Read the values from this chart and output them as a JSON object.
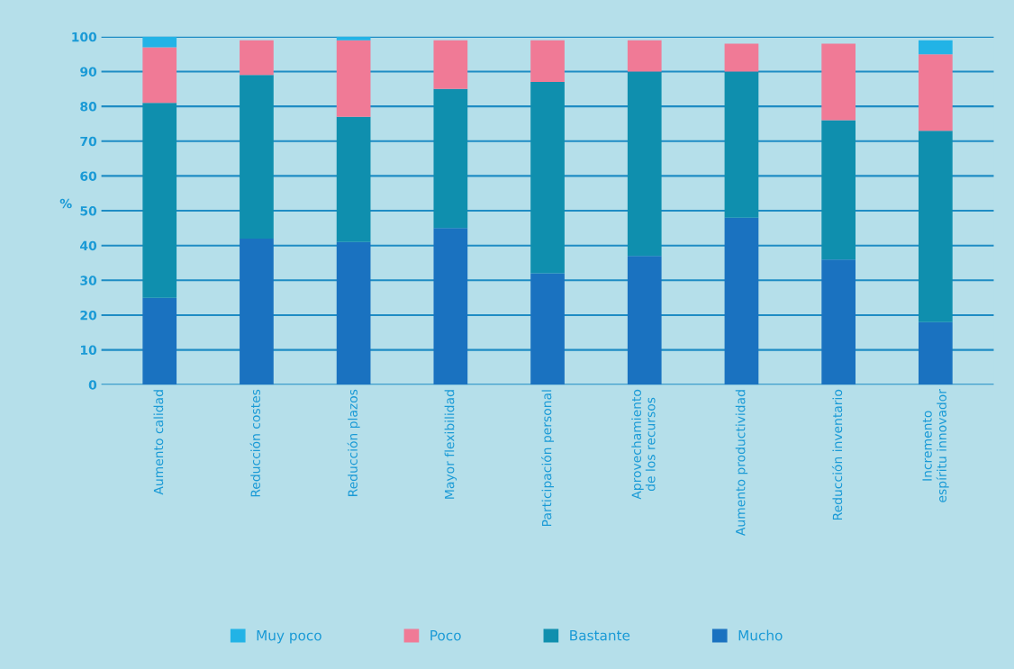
{
  "chart_data": {
    "type": "bar",
    "stacked": true,
    "ylabel": "%",
    "categories": [
      "Aumento calidad",
      "Reducción costes",
      "Reducción plazos",
      "Mayor flexibilidad",
      "Participación personal",
      "Aprovechamiento\nde los recursos",
      "Aumento productividad",
      "Reducción inventario",
      "Incremento\nespíritu innovador"
    ],
    "series": [
      {
        "name": "Mucho",
        "color": "#1a72c0",
        "values": [
          25,
          42,
          41,
          45,
          32,
          37,
          48,
          36,
          18
        ]
      },
      {
        "name": "Bastante",
        "color": "#0f8fae",
        "values": [
          56,
          47,
          36,
          40,
          55,
          53,
          42,
          40,
          55
        ]
      },
      {
        "name": "Poco",
        "color": "#f07a96",
        "values": [
          16,
          10,
          22,
          14,
          12,
          9,
          8,
          22,
          22
        ]
      },
      {
        "name": "Muy poco",
        "color": "#22b3e6",
        "values": [
          3,
          0,
          1,
          0,
          0,
          0,
          0,
          0,
          4
        ]
      }
    ],
    "ylim": [
      0,
      100
    ],
    "yticks": [
      0,
      10,
      20,
      30,
      40,
      50,
      60,
      70,
      80,
      90,
      100
    ],
    "grid": "y",
    "legend": "bottom"
  }
}
